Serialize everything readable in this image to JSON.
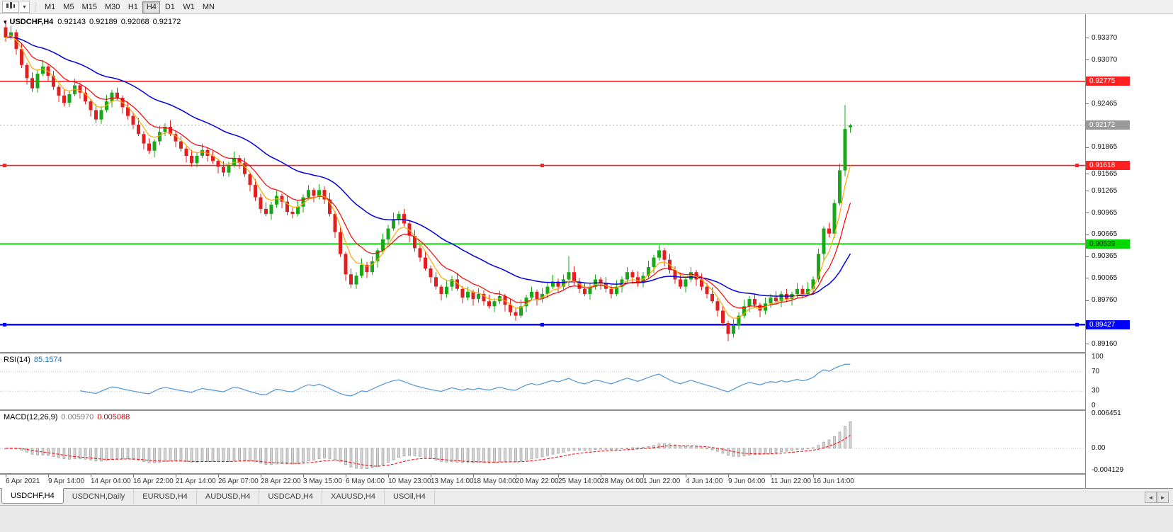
{
  "icons": {
    "caret": "▾",
    "one_click": "▾",
    "scroll_left": "◄",
    "scroll_right": "►"
  },
  "toolbar": {
    "timeframes": [
      "M1",
      "M5",
      "M15",
      "M30",
      "H1",
      "H4",
      "D1",
      "W1",
      "MN"
    ],
    "active_timeframe": "H4"
  },
  "chart": {
    "symbol": "USDCHF,H4",
    "ohlc": {
      "open": "0.92143",
      "high": "0.92189",
      "low": "0.92068",
      "close": "0.92172"
    },
    "ylim": [
      0.8905,
      0.937
    ],
    "price_axis_labels": [
      "0.93370",
      "0.93070",
      "0.92465",
      "0.91865",
      "0.91565",
      "0.91265",
      "0.90965",
      "0.90665",
      "0.90365",
      "0.90065",
      "0.89760",
      "0.89160"
    ],
    "price_badges": [
      {
        "label": "0.92775",
        "bg": "#ff2020",
        "fg": "#ffffff",
        "name": "resistance-line-price-badge"
      },
      {
        "label": "0.92172",
        "bg": "#9a9a9a",
        "fg": "#ffffff",
        "name": "current-price-badge"
      },
      {
        "label": "0.91618",
        "bg": "#ff2020",
        "fg": "#ffffff",
        "name": "resistance-line-price-badge"
      },
      {
        "label": "0.90539",
        "bg": "#00d800",
        "fg": "#003800",
        "name": "support-line-price-badge"
      },
      {
        "label": "0.89427",
        "bg": "#0000ff",
        "fg": "#ffffff",
        "name": "support-line-price-badge"
      }
    ],
    "hlines": [
      {
        "price": 0.92775,
        "color": "#ff2020",
        "width": 1.6,
        "handles": false
      },
      {
        "price": 0.91618,
        "color": "#ff2020",
        "width": 1.6,
        "handles": true
      },
      {
        "price": 0.90539,
        "color": "#00d800",
        "width": 1.8,
        "handles": false
      },
      {
        "price": 0.89427,
        "color": "#0000ff",
        "width": 2.4,
        "handles": true
      }
    ],
    "current_price": 0.92172,
    "colors": {
      "up": "#18a818",
      "down": "#e02020",
      "ma_fast": "#ffa800",
      "ma_mid": "#ff0000",
      "ma_slow": "#0000e0"
    },
    "chart_data": {
      "type": "candlestick",
      "first_open": 0.9352,
      "closes": [
        0.9338,
        0.9345,
        0.9322,
        0.93,
        0.9282,
        0.9268,
        0.9288,
        0.9298,
        0.9285,
        0.927,
        0.9258,
        0.9248,
        0.926,
        0.9272,
        0.9262,
        0.925,
        0.9238,
        0.9225,
        0.9238,
        0.925,
        0.9262,
        0.9255,
        0.9242,
        0.923,
        0.9218,
        0.9205,
        0.9192,
        0.9182,
        0.9195,
        0.9208,
        0.9215,
        0.9205,
        0.9195,
        0.9185,
        0.9175,
        0.9165,
        0.9175,
        0.9183,
        0.9175,
        0.9168,
        0.916,
        0.9152,
        0.9162,
        0.9172,
        0.9165,
        0.915,
        0.9135,
        0.9118,
        0.9102,
        0.9095,
        0.9108,
        0.912,
        0.9112,
        0.9098,
        0.9095,
        0.9105,
        0.9118,
        0.9128,
        0.912,
        0.9128,
        0.9115,
        0.9095,
        0.907,
        0.904,
        0.9012,
        0.8998,
        0.901,
        0.9025,
        0.9015,
        0.903,
        0.9045,
        0.906,
        0.9075,
        0.9088,
        0.9095,
        0.9082,
        0.9065,
        0.9048,
        0.9035,
        0.902,
        0.9008,
        0.8995,
        0.8985,
        0.8995,
        0.9005,
        0.8992,
        0.898,
        0.8988,
        0.8978,
        0.8985,
        0.8975,
        0.8968,
        0.8975,
        0.8982,
        0.897,
        0.896,
        0.8955,
        0.8968,
        0.898,
        0.8988,
        0.8978,
        0.8985,
        0.8995,
        0.9002,
        0.8995,
        0.9005,
        0.9015,
        0.9002,
        0.8992,
        0.8985,
        0.8995,
        0.9005,
        0.9,
        0.8992,
        0.8985,
        0.8995,
        0.9005,
        0.9015,
        0.9008,
        0.9,
        0.901,
        0.9022,
        0.9035,
        0.9045,
        0.9032,
        0.9018,
        0.9005,
        0.8995,
        0.9005,
        0.9015,
        0.9005,
        0.8995,
        0.8985,
        0.8975,
        0.8962,
        0.8945,
        0.893,
        0.8942,
        0.8955,
        0.8968,
        0.8978,
        0.897,
        0.8962,
        0.8972,
        0.898,
        0.8975,
        0.8985,
        0.8978,
        0.8985,
        0.8992,
        0.8985,
        0.8992,
        0.9005,
        0.904,
        0.9075,
        0.9068,
        0.911,
        0.9155,
        0.9212,
        0.92172
      ],
      "wick_overrides": {
        "0": [
          0.9362,
          null
        ],
        "96": [
          null,
          0.8948
        ],
        "106": [
          0.9037,
          null
        ],
        "123": [
          0.9052,
          null
        ],
        "136": [
          null,
          0.892
        ],
        "158": [
          0.9245,
          null
        ],
        "159": [
          0.92189,
          0.92068
        ]
      },
      "open_overrides": {
        "159": 0.92143
      },
      "ma_periods": {
        "fast": 5,
        "mid": 10,
        "slow": 30
      }
    }
  },
  "rsi": {
    "label": "RSI(14)",
    "value": "85.1574",
    "axis": [
      "100",
      "70",
      "30",
      "0"
    ],
    "levels": [
      70,
      30
    ],
    "range": [
      0,
      100
    ],
    "color": "#5b9bd5"
  },
  "macd": {
    "label": "MACD(12,26,9)",
    "value_main": "0.005970",
    "value_signal": "0.005088",
    "axis_top": "0.006451",
    "axis_zero": "0.00",
    "axis_bottom": "-0.004129",
    "range": [
      -0.004129,
      0.006451
    ],
    "colors": {
      "histogram_fill": "#d6d6d6",
      "histogram_stroke": "#9a9a9a",
      "signal": "#ff0000"
    }
  },
  "time_axis": {
    "labels": [
      "6 Apr 2021",
      "9 Apr 14:00",
      "14 Apr 04:00",
      "16 Apr 22:00",
      "21 Apr 14:00",
      "26 Apr 07:00",
      "28 Apr 22:00",
      "3 May 15:00",
      "6 May 04:00",
      "10 May 23:00",
      "13 May 14:00",
      "18 May 04:00",
      "20 May 22:00",
      "25 May 14:00",
      "28 May 04:00",
      "1 Jun 22:00",
      "4 Jun 14:00",
      "9 Jun 04:00",
      "11 Jun 22:00",
      "16 Jun 14:00"
    ]
  },
  "tabs": {
    "active": "USDCHF,H4",
    "items": [
      "USDCHF,H4",
      "USDCNH,Daily",
      "EURUSD,H4",
      "AUDUSD,H4",
      "USDCAD,H4",
      "XAUUSD,H4",
      "USOil,H4"
    ]
  }
}
